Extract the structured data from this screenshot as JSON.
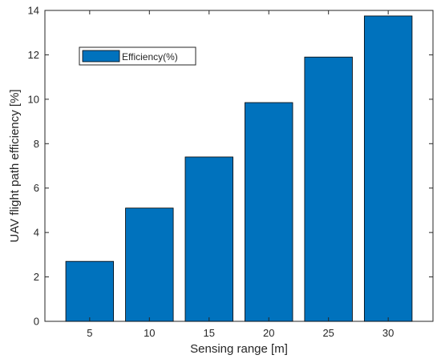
{
  "chart_data": {
    "type": "bar",
    "categories": [
      "5",
      "10",
      "15",
      "20",
      "25",
      "30"
    ],
    "series": [
      {
        "name": "Efficiency(%)",
        "values": [
          2.7,
          5.1,
          7.4,
          9.85,
          11.9,
          13.75
        ],
        "color": "#0072bd"
      }
    ],
    "title": "",
    "xlabel": "Sensing range [m]",
    "ylabel": "UAV flight path efficiency [%]",
    "ylim": [
      0,
      14
    ],
    "yticks": [
      0,
      2,
      4,
      6,
      8,
      10,
      12,
      14
    ],
    "grid": false,
    "legend": {
      "position": "top-left",
      "entries": [
        "Efficiency(%)"
      ]
    }
  }
}
